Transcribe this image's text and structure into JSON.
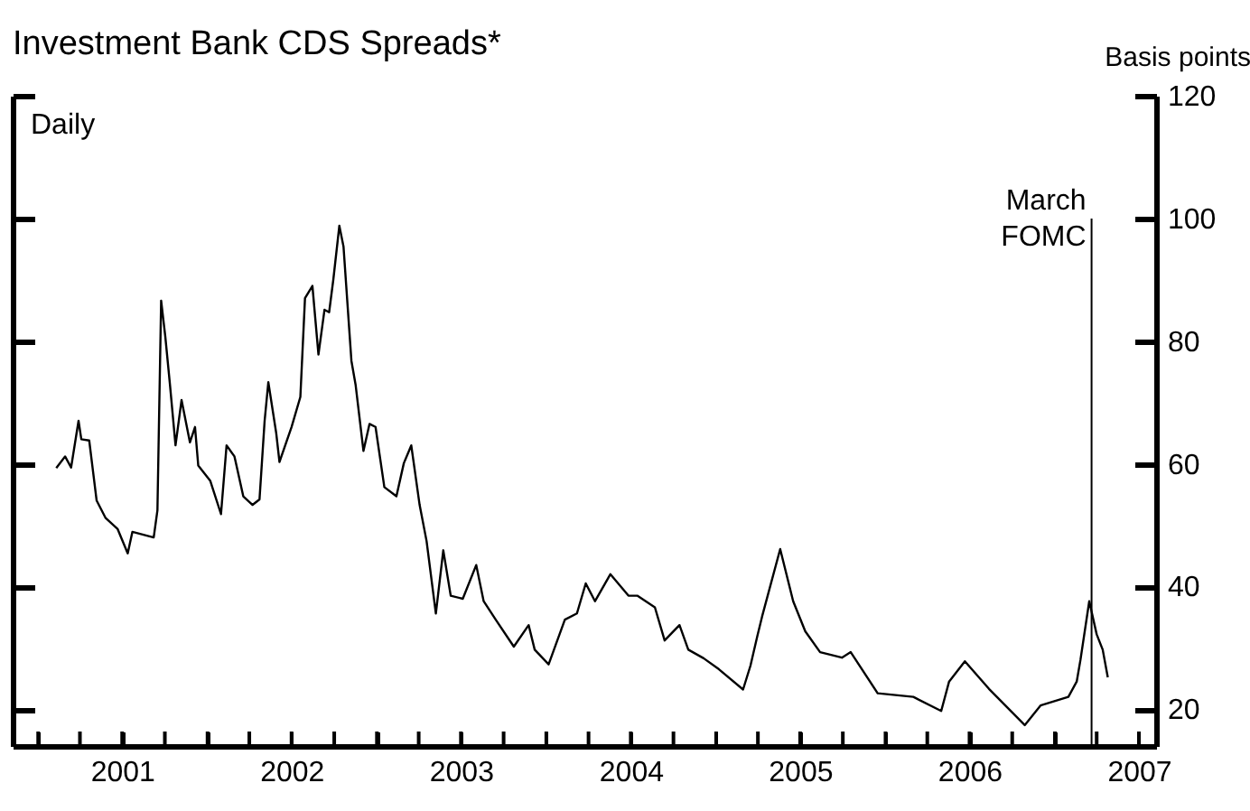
{
  "chart_data": {
    "type": "line",
    "title": "Investment Bank CDS Spreads*",
    "ylabel": "Basis points",
    "annotations": [
      "Daily"
    ],
    "x": [
      "2001-02-09",
      "2001-02-28",
      "2001-03-13",
      "2001-03-29",
      "2001-04-04",
      "2001-04-21",
      "2001-05-07",
      "2001-05-26",
      "2001-06-21",
      "2001-07-13",
      "2001-07-23",
      "2001-09-07",
      "2001-09-15",
      "2001-09-23",
      "2001-10-02",
      "2001-10-12",
      "2001-10-24",
      "2001-11-06",
      "2001-11-24",
      "2001-12-05",
      "2001-12-12",
      "2002-01-07",
      "2002-01-30",
      "2002-02-11",
      "2002-02-28",
      "2002-03-19",
      "2002-04-08",
      "2002-04-23",
      "2002-05-04",
      "2002-05-12",
      "2002-05-29",
      "2002-06-05",
      "2002-07-01",
      "2002-07-20",
      "2002-07-30",
      "2002-08-15",
      "2002-08-28",
      "2002-09-10",
      "2002-09-20",
      "2002-09-29",
      "2002-10-12",
      "2002-10-21",
      "2002-11-07",
      "2002-11-16",
      "2002-12-03",
      "2002-12-16",
      "2002-12-29",
      "2003-01-17",
      "2003-02-12",
      "2003-02-28",
      "2003-03-16",
      "2003-04-03",
      "2003-04-18",
      "2003-05-08",
      "2003-05-24",
      "2003-06-09",
      "2003-07-05",
      "2003-08-03",
      "2003-08-19",
      "2003-09-14",
      "2003-10-23",
      "2003-11-24",
      "2003-12-07",
      "2004-01-06",
      "2004-02-10",
      "2004-03-07",
      "2004-03-26",
      "2004-04-15",
      "2004-05-18",
      "2004-06-26",
      "2004-07-15",
      "2004-08-22",
      "2004-09-12",
      "2004-10-14",
      "2004-11-02",
      "2004-12-05",
      "2005-01-07",
      "2005-02-28",
      "2005-03-16",
      "2005-03-31",
      "2005-04-10",
      "2005-05-19",
      "2005-06-16",
      "2005-07-12",
      "2005-08-13",
      "2005-09-29",
      "2005-10-18",
      "2005-12-15",
      "2006-03-02",
      "2006-05-01",
      "2006-05-18",
      "2006-06-21",
      "2006-08-12",
      "2006-10-28",
      "2006-12-01",
      "2007-01-30",
      "2007-02-17",
      "2007-02-25",
      "2007-03-16",
      "2007-04-01",
      "2007-04-14",
      "2007-04-25"
    ],
    "series": [
      {
        "color": "#000000",
        "values": [
          59.3,
          61.2,
          59.4,
          67,
          64,
          63.8,
          54,
          51.2,
          49.4,
          45.4,
          48.9,
          48,
          52.4,
          86.6,
          80.7,
          72.9,
          63,
          70.4,
          63.5,
          66,
          59.7,
          57.2,
          51.8,
          63,
          61.2,
          54.7,
          53.3,
          54.2,
          67,
          73.3,
          65,
          60.3,
          66,
          70.9,
          87,
          89,
          77.8,
          85.1,
          84.7,
          90,
          98.8,
          95.4,
          76.8,
          72.9,
          62.1,
          66.5,
          66,
          56.2,
          54.7,
          60.1,
          63,
          53.3,
          47.4,
          35.6,
          45.9,
          38.5,
          38,
          43.5,
          37.6,
          34.6,
          30.2,
          33.7,
          29.7,
          27.3,
          34.6,
          35.6,
          40.5,
          37.6,
          42,
          38.5,
          38.5,
          36.6,
          31.2,
          33.7,
          29.7,
          28.3,
          26.5,
          23.2,
          27.1,
          32,
          35.1,
          46.1,
          37.6,
          32.7,
          29.3,
          28.4,
          29.3,
          22.6,
          22,
          19.7,
          24.5,
          27.8,
          23.3,
          17.4,
          20.6,
          22,
          24.5,
          28,
          37.6,
          32.2,
          29.7,
          25.2
        ]
      }
    ],
    "xlim": [
      "2000-11-07",
      "2007-08-07"
    ],
    "xticks": [
      {
        "value": "2001-01-01",
        "label": null
      },
      {
        "value": "2001-04-01",
        "label": null
      },
      {
        "value": "2001-07-01",
        "label": "2001"
      },
      {
        "value": "2001-10-01",
        "label": null
      },
      {
        "value": "2002-01-01",
        "label": null
      },
      {
        "value": "2002-04-01",
        "label": null
      },
      {
        "value": "2002-07-01",
        "label": "2002"
      },
      {
        "value": "2002-10-01",
        "label": null
      },
      {
        "value": "2003-01-01",
        "label": null
      },
      {
        "value": "2003-04-01",
        "label": null
      },
      {
        "value": "2003-07-01",
        "label": "2003"
      },
      {
        "value": "2003-10-01",
        "label": null
      },
      {
        "value": "2004-01-01",
        "label": null
      },
      {
        "value": "2004-04-01",
        "label": null
      },
      {
        "value": "2004-07-01",
        "label": "2004"
      },
      {
        "value": "2004-10-01",
        "label": null
      },
      {
        "value": "2005-01-01",
        "label": null
      },
      {
        "value": "2005-04-01",
        "label": null
      },
      {
        "value": "2005-07-01",
        "label": "2005"
      },
      {
        "value": "2005-10-01",
        "label": null
      },
      {
        "value": "2006-01-01",
        "label": null
      },
      {
        "value": "2006-04-01",
        "label": null
      },
      {
        "value": "2006-07-01",
        "label": "2006"
      },
      {
        "value": "2006-10-01",
        "label": null
      },
      {
        "value": "2007-01-01",
        "label": null
      },
      {
        "value": "2007-04-01",
        "label": null
      },
      {
        "value": "2007-07-01",
        "label": "2007"
      }
    ],
    "ylim": [
      14,
      120
    ],
    "yticks": [
      20,
      40,
      60,
      80,
      100,
      120
    ],
    "ref_lines": [
      {
        "axis": "x",
        "value": "2007-03-21",
        "label": "March FOMC",
        "color": "#000000"
      }
    ]
  }
}
